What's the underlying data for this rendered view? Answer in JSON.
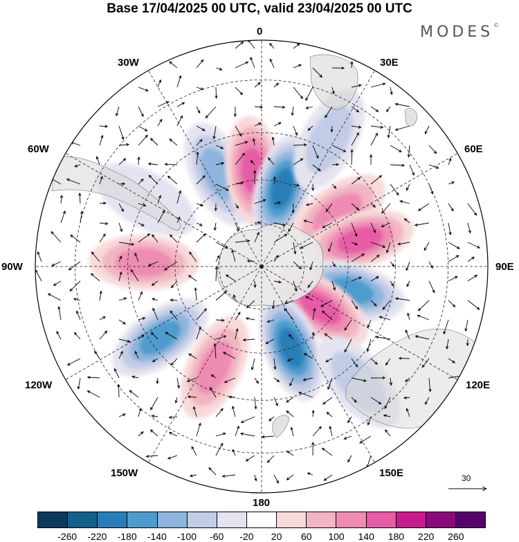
{
  "title": "Base 17/04/2025 00 UTC, valid 23/04/2025 00 UTC",
  "logo": {
    "text": "MODES",
    "mark": "©"
  },
  "longitude_labels": [
    {
      "id": "0",
      "text": "0"
    },
    {
      "id": "30e",
      "text": "30E"
    },
    {
      "id": "60e",
      "text": "60E"
    },
    {
      "id": "90e",
      "text": "90E"
    },
    {
      "id": "120e",
      "text": "120E"
    },
    {
      "id": "150e",
      "text": "150E"
    },
    {
      "id": "180",
      "text": "180"
    },
    {
      "id": "150w",
      "text": "150W"
    },
    {
      "id": "120w",
      "text": "120W"
    },
    {
      "id": "90w",
      "text": "90W"
    },
    {
      "id": "60w",
      "text": "60W"
    },
    {
      "id": "30w",
      "text": "30W"
    }
  ],
  "vector_reference": {
    "value": "30"
  },
  "colorbar": {
    "colors": [
      "#0b3a5a",
      "#155f8d",
      "#2a7eb7",
      "#4e9ccd",
      "#8db5dd",
      "#c3cce6",
      "#e4e3ef",
      "#ffffff",
      "#f8dada",
      "#f2b5c2",
      "#ee8cb3",
      "#e65ca6",
      "#c81c8c",
      "#8b0a7a",
      "#56046b"
    ],
    "tick_labels": [
      "-260",
      "-220",
      "-180",
      "-140",
      "-100",
      "-60",
      "-20",
      "20",
      "60",
      "100",
      "140",
      "180",
      "220",
      "260"
    ]
  },
  "map_data": {
    "projection": "south-polar-stereographic",
    "field": "anomaly",
    "anomaly_blobs": [
      {
        "lon": -25,
        "lat": -55,
        "value": -110
      },
      {
        "lon": -5,
        "lat": -57,
        "value": 170
      },
      {
        "lon": 15,
        "lat": -62,
        "value": -190
      },
      {
        "lon": 28,
        "lat": -42,
        "value": -80
      },
      {
        "lon": 55,
        "lat": -58,
        "value": 120
      },
      {
        "lon": 75,
        "lat": -55,
        "value": 150
      },
      {
        "lon": 105,
        "lat": -58,
        "value": -150
      },
      {
        "lon": 125,
        "lat": -65,
        "value": 160
      },
      {
        "lon": 160,
        "lat": -60,
        "value": -200
      },
      {
        "lon": -155,
        "lat": -52,
        "value": 120
      },
      {
        "lon": -125,
        "lat": -48,
        "value": -140
      },
      {
        "lon": -88,
        "lat": -50,
        "value": 110
      },
      {
        "lon": 140,
        "lat": -40,
        "value": -60
      },
      {
        "lon": -60,
        "lat": -45,
        "value": -40
      }
    ]
  }
}
